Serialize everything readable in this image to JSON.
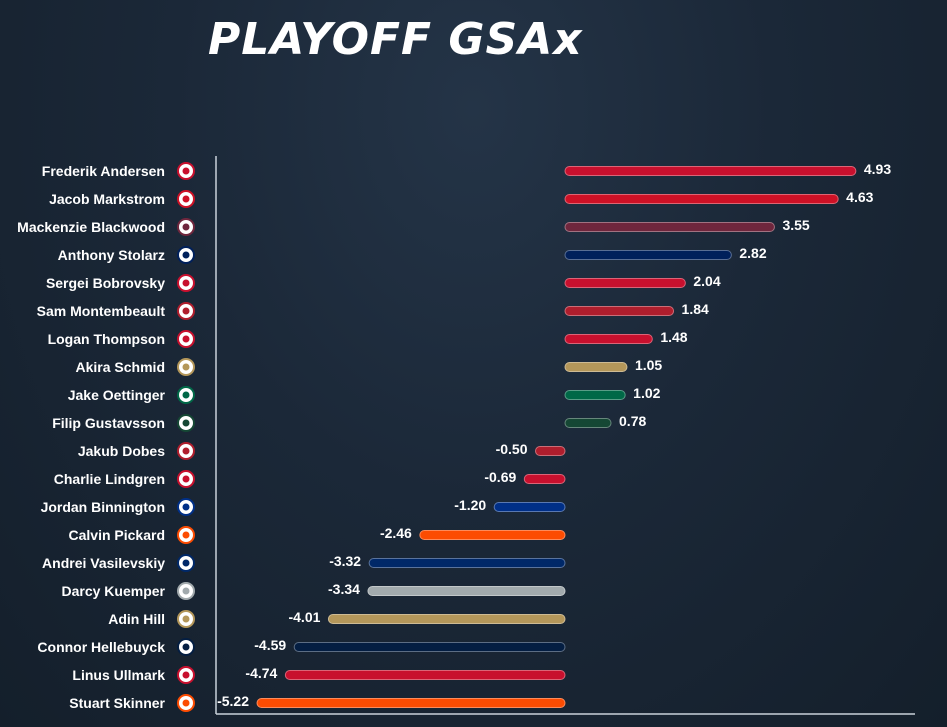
{
  "title": "PLAYOFF GSAx",
  "chart_data": {
    "type": "bar",
    "orientation": "horizontal",
    "title": "PLAYOFF GSAx",
    "xlabel": "",
    "ylabel": "",
    "xlim": [
      -6.0,
      6.8
    ],
    "grid": false,
    "categories": [
      "Frederik Andersen",
      "Jacob Markstrom",
      "Mackenzie Blackwood",
      "Anthony Stolarz",
      "Sergei Bobrovsky",
      "Sam Montembeault",
      "Logan Thompson",
      "Akira Schmid",
      "Jake Oettinger",
      "Filip Gustavsson",
      "Jakub Dobes",
      "Charlie Lindgren",
      "Jordan Binnington",
      "Calvin Pickard",
      "Andrei Vasilevskiy",
      "Darcy Kuemper",
      "Adin Hill",
      "Connor Hellebuyck",
      "Linus Ullmark",
      "Stuart Skinner"
    ],
    "values": [
      4.93,
      4.63,
      3.55,
      2.82,
      2.04,
      1.84,
      1.48,
      1.05,
      1.02,
      0.78,
      -0.5,
      -0.69,
      -1.2,
      -2.46,
      -3.32,
      -3.34,
      -4.01,
      -4.59,
      -4.74,
      -5.22
    ],
    "value_labels": [
      "4.93",
      "4.63",
      "3.55",
      "2.82",
      "2.04",
      "1.84",
      "1.48",
      "1.05",
      "1.02",
      "0.78",
      "-0.50",
      "-0.69",
      "-1.20",
      "-2.46",
      "-3.32",
      "-3.34",
      "-4.01",
      "-4.59",
      "-4.74",
      "-5.22"
    ],
    "teams": [
      "carolina",
      "new-jersey",
      "colorado",
      "toronto",
      "florida",
      "montreal",
      "washington",
      "vegas",
      "dallas",
      "minnesota",
      "montreal",
      "washington",
      "st-louis",
      "edmonton",
      "tampa-bay",
      "los-angeles",
      "vegas",
      "winnipeg",
      "ottawa",
      "edmonton"
    ],
    "colors": [
      "#c8102e",
      "#ce1126",
      "#6f263d",
      "#00205b",
      "#c8102e",
      "#af1e2d",
      "#c8102e",
      "#b4975a",
      "#006847",
      "#154734",
      "#af1e2d",
      "#c8102e",
      "#002f87",
      "#fc4c02",
      "#002868",
      "#a2aaad",
      "#b4975a",
      "#041e42",
      "#c8102e",
      "#fc4c02"
    ]
  }
}
